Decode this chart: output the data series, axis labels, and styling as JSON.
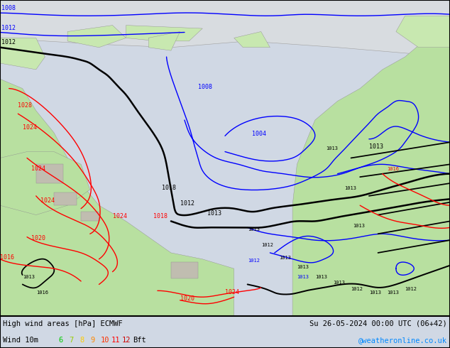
{
  "title_left": "High wind areas [hPa] ECMWF",
  "title_left2": "Wind 10m",
  "title_right": "Su 26-05-2024 00:00 UTC (06+42)",
  "title_right2": "@weatheronline.co.uk",
  "ocean_color": "#d0d8e4",
  "land_green": "#b8e0a0",
  "land_light": "#c8e8b0",
  "land_gray": "#c0bdb0",
  "bft_labels": [
    "6",
    "7",
    "8",
    "9",
    "10",
    "11",
    "12"
  ],
  "bft_colors": [
    "#00cc00",
    "#99cc00",
    "#ffcc00",
    "#ff8800",
    "#ff3300",
    "#ff0000",
    "#cc0000"
  ],
  "fig_width": 6.34,
  "fig_height": 4.9,
  "dpi": 100
}
